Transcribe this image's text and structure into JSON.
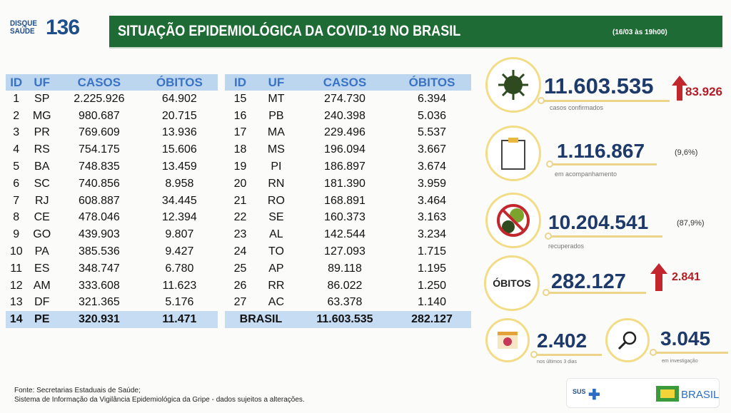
{
  "header": {
    "logo_small": "DISQUE SAÚDE",
    "logo_number": "136",
    "title": "SITUAÇÃO EPIDEMIOLÓGICA DA COVID-19 NO BRASIL",
    "date": "(16/03 às 19h00)"
  },
  "table": {
    "columns": [
      "ID",
      "UF",
      "CASOS",
      "ÓBITOS"
    ],
    "left_rows": [
      [
        "1",
        "SP",
        "2.225.926",
        "64.902"
      ],
      [
        "2",
        "MG",
        "980.687",
        "20.715"
      ],
      [
        "3",
        "PR",
        "769.609",
        "13.936"
      ],
      [
        "4",
        "RS",
        "754.175",
        "15.606"
      ],
      [
        "5",
        "BA",
        "748.835",
        "13.459"
      ],
      [
        "6",
        "SC",
        "740.856",
        "8.958"
      ],
      [
        "7",
        "RJ",
        "608.887",
        "34.445"
      ],
      [
        "8",
        "CE",
        "478.046",
        "12.394"
      ],
      [
        "9",
        "GO",
        "439.903",
        "9.807"
      ],
      [
        "10",
        "PA",
        "385.536",
        "9.427"
      ],
      [
        "11",
        "ES",
        "348.747",
        "6.780"
      ],
      [
        "12",
        "AM",
        "333.608",
        "11.623"
      ],
      [
        "13",
        "DF",
        "321.365",
        "5.176"
      ],
      [
        "14",
        "PE",
        "320.931",
        "11.471"
      ]
    ],
    "right_rows": [
      [
        "15",
        "MT",
        "274.730",
        "6.394"
      ],
      [
        "16",
        "PB",
        "240.398",
        "5.036"
      ],
      [
        "17",
        "MA",
        "229.496",
        "5.537"
      ],
      [
        "18",
        "MS",
        "196.094",
        "3.667"
      ],
      [
        "19",
        "PI",
        "186.897",
        "3.674"
      ],
      [
        "20",
        "RN",
        "181.390",
        "3.959"
      ],
      [
        "21",
        "RO",
        "168.891",
        "3.464"
      ],
      [
        "22",
        "SE",
        "160.373",
        "3.163"
      ],
      [
        "23",
        "AL",
        "142.544",
        "3.234"
      ],
      [
        "24",
        "TO",
        "127.093",
        "1.715"
      ],
      [
        "25",
        "AP",
        "89.118",
        "1.195"
      ],
      [
        "26",
        "RR",
        "86.022",
        "1.250"
      ],
      [
        "27",
        "AC",
        "63.378",
        "1.140"
      ]
    ],
    "total": {
      "label": "BRASIL",
      "casos": "11.603.535",
      "obitos": "282.127"
    }
  },
  "stats": {
    "confirmados": {
      "value": "11.603.535",
      "increase": "83.926",
      "label": "casos confirmados",
      "icon": "virus-icon"
    },
    "acompanhamento": {
      "value": "1.116.867",
      "pct": "(9,6%)",
      "label": "em acompanhamento",
      "icon": "clipboard-icon"
    },
    "recuperados": {
      "value": "10.204.541",
      "pct": "(87,9%)",
      "label": "recuperados",
      "icon": "no-virus-icon"
    },
    "obitos": {
      "badge": "ÓBITOS",
      "value": "282.127",
      "increase": "2.841"
    },
    "ultimos": {
      "value": "2.402",
      "label": "nos últimos 3 dias",
      "icon": "calendar-icon"
    },
    "investigacao": {
      "value": "3.045",
      "label": "em investigação",
      "icon": "magnifier-icon"
    }
  },
  "footer": {
    "line1": "Fonte: Secretarias Estaduais de Saúde;",
    "line2": "Sistema de Informação da Vigilância Epidemiológica da Gripe - dados sujeitos a alterações."
  },
  "logos": {
    "sus": "SUS",
    "brasil": "BRASIL"
  },
  "colors": {
    "banner": "#1f6b35",
    "header_row": "#bcd6ef",
    "numbers": "#1d3a6b",
    "increase": "#b31b25",
    "ring": "#f2dc86"
  }
}
